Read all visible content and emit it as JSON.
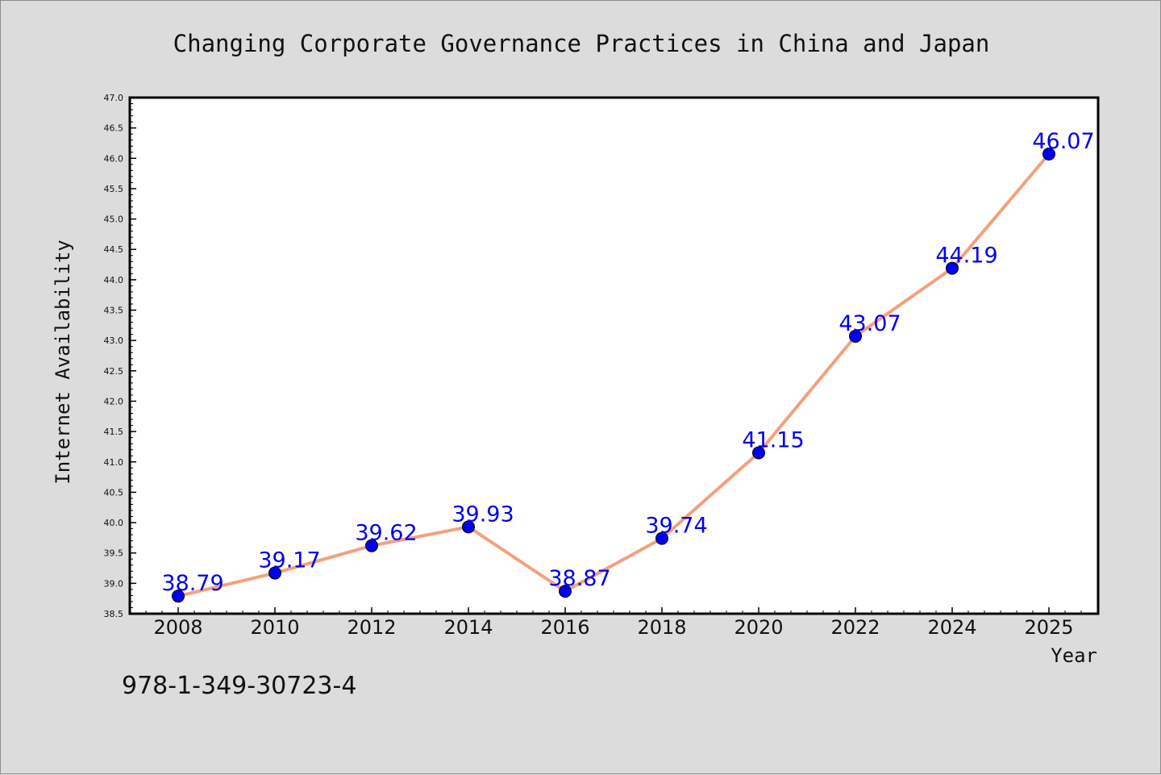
{
  "chart_data": {
    "type": "line",
    "title": "Changing Corporate Governance Practices in China and Japan",
    "xlabel": "Year",
    "ylabel": "Internet Availability",
    "categories": [
      "2008",
      "2010",
      "2012",
      "2014",
      "2016",
      "2018",
      "2020",
      "2022",
      "2024",
      "2025"
    ],
    "series": [
      {
        "values": [
          38.79,
          39.17,
          39.62,
          39.93,
          38.87,
          39.74,
          41.15,
          43.07,
          44.19,
          46.07
        ],
        "data_labels": [
          "38.79",
          "39.17",
          "39.62",
          "39.93",
          "38.87",
          "39.74",
          "41.15",
          "43.07",
          "44.19",
          "46.07"
        ],
        "line_color": "#f4a07c",
        "marker_color": "#0000ee"
      }
    ],
    "ylim": [
      38.5,
      47.0
    ],
    "yticks": [
      "38.5",
      "39.0",
      "39.5",
      "40.0",
      "40.5",
      "41.0",
      "41.5",
      "42.0",
      "42.5",
      "43.0",
      "43.5",
      "44.0",
      "44.5",
      "45.0",
      "45.5",
      "46.0",
      "46.5",
      "47.0"
    ],
    "grid": false,
    "label_color": "#0000ee"
  },
  "caption": "978-1-349-30723-4"
}
